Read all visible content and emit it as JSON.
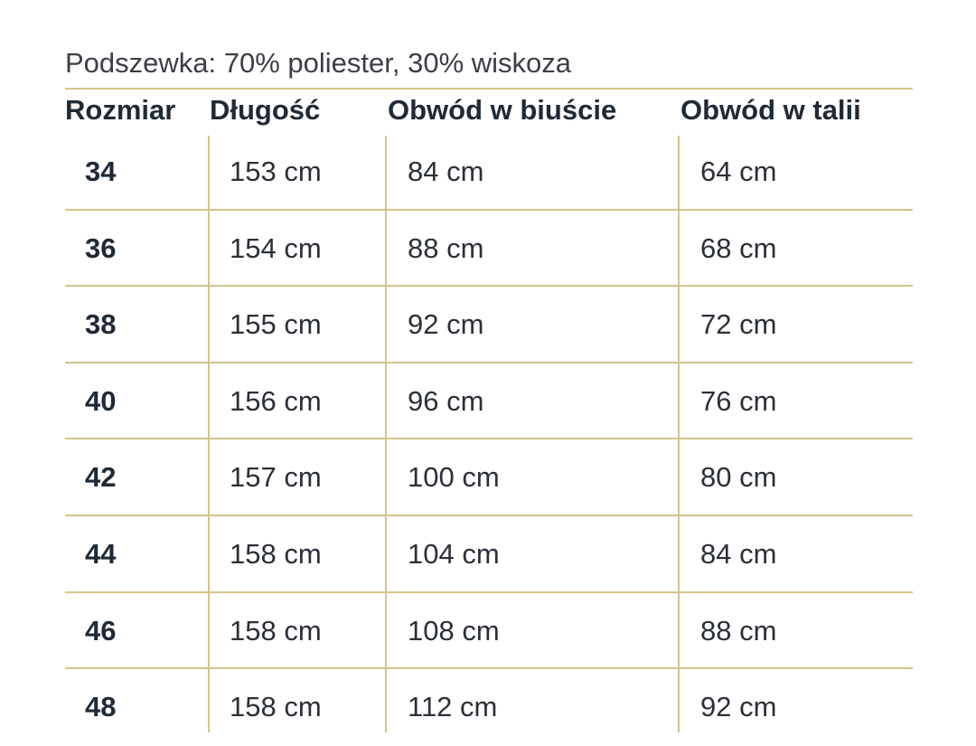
{
  "lining_text": "Podszewka: 70% poliester, 30% wiskoza",
  "table": {
    "headers": [
      "Rozmiar",
      "Długość",
      "Obwód w biuście",
      "Obwód w talii"
    ],
    "rows": [
      [
        "34",
        "153 cm",
        "84 cm",
        "64 cm"
      ],
      [
        "36",
        "154 cm",
        "88 cm",
        "68 cm"
      ],
      [
        "38",
        "155 cm",
        "92 cm",
        "72 cm"
      ],
      [
        "40",
        "156 cm",
        "96 cm",
        "76 cm"
      ],
      [
        "42",
        "157 cm",
        "100 cm",
        "80 cm"
      ],
      [
        "44",
        "158 cm",
        "104 cm",
        "84 cm"
      ],
      [
        "46",
        "158 cm",
        "108 cm",
        "88 cm"
      ],
      [
        "48",
        "158 cm",
        "112 cm",
        "92 cm"
      ]
    ]
  },
  "colors": {
    "rule": "#d3c48a",
    "text": "#1f2a36"
  }
}
